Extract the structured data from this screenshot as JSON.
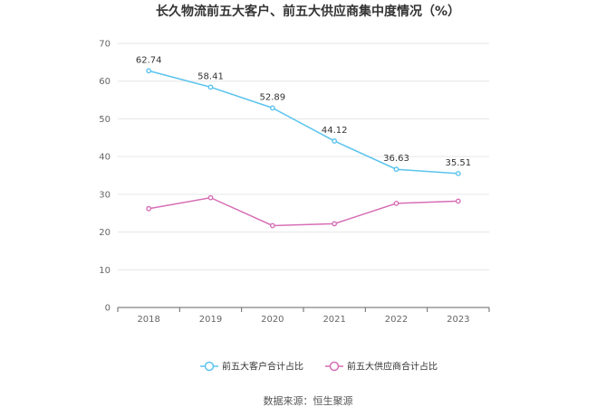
{
  "chart_data": {
    "type": "line",
    "title": "长久物流前五大客户、前五大供应商集中度情况（%）",
    "categories": [
      "2018",
      "2019",
      "2020",
      "2021",
      "2022",
      "2023"
    ],
    "ylim": [
      0,
      70
    ],
    "yticks": [
      0,
      10,
      20,
      30,
      40,
      50,
      60,
      70
    ],
    "grid": true,
    "legend_position": "bottom",
    "series": [
      {
        "name": "前五大客户合计占比",
        "color": "#5bc4ee",
        "values": [
          62.74,
          58.41,
          52.89,
          44.12,
          36.63,
          35.51
        ],
        "data_labels": [
          "62.74",
          "58.41",
          "52.89",
          "44.12",
          "36.63",
          "35.51"
        ]
      },
      {
        "name": "前五大供应商合计占比",
        "color": "#d66fb6",
        "values": [
          26.2,
          29.1,
          21.7,
          22.2,
          27.6,
          28.2
        ],
        "data_labels": []
      }
    ]
  },
  "source": "数据来源：恒生聚源"
}
